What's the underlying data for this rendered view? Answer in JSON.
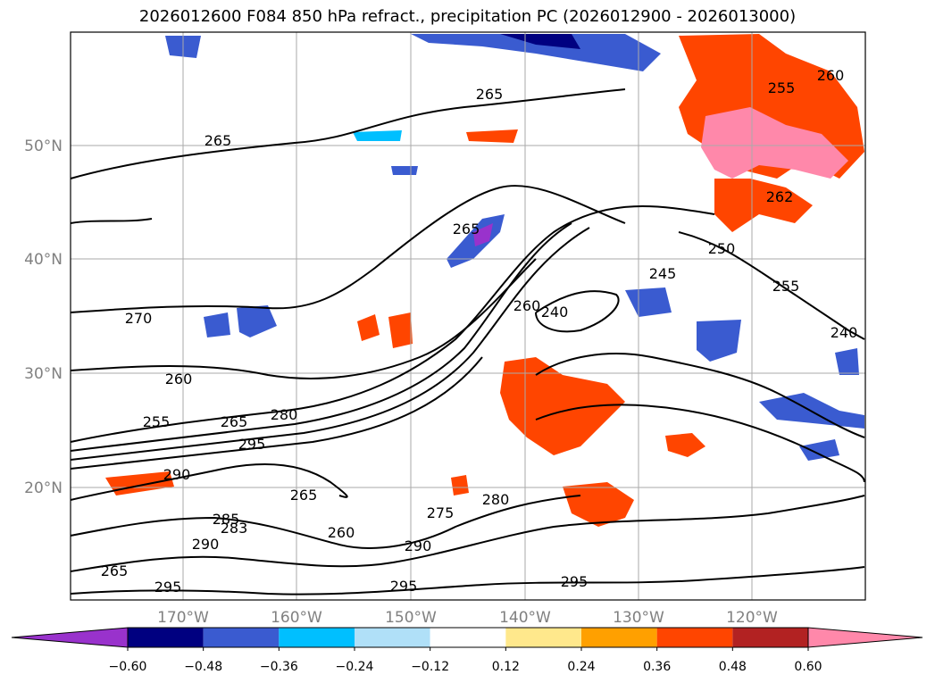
{
  "title": "2026012600 F084 850 hPa refract., precipitation PC (2026012900 - 2026013000)",
  "latitude_labels": [
    "50°N",
    "40°N",
    "30°N",
    "20°N"
  ],
  "longitude_labels": [
    "170°W",
    "160°W",
    "150°W",
    "140°W",
    "130°W",
    "120°W"
  ],
  "contour_labels": [
    "265",
    "265",
    "265",
    "270",
    "260",
    "255",
    "265",
    "280",
    "295",
    "290",
    "285",
    "265",
    "260",
    "275",
    "280",
    "290",
    "295",
    "295",
    "295",
    "240",
    "245",
    "250",
    "255",
    "262",
    "260",
    "255",
    "240",
    "260",
    "283",
    "290",
    "265"
  ],
  "colorbar": {
    "ticks": [
      "−0.60",
      "−0.48",
      "−0.36",
      "−0.24",
      "−0.12",
      "0.12",
      "0.24",
      "0.36",
      "0.48",
      "0.60"
    ],
    "colors": [
      "#9932cc",
      "#000080",
      "#3a5bd0",
      "#00bfff",
      "#b0e0f8",
      "#ffffff",
      "#ffe88c",
      "#ffa000",
      "#ff4500",
      "#b22222",
      "#ff88aa",
      "#ff88aa"
    ]
  }
}
